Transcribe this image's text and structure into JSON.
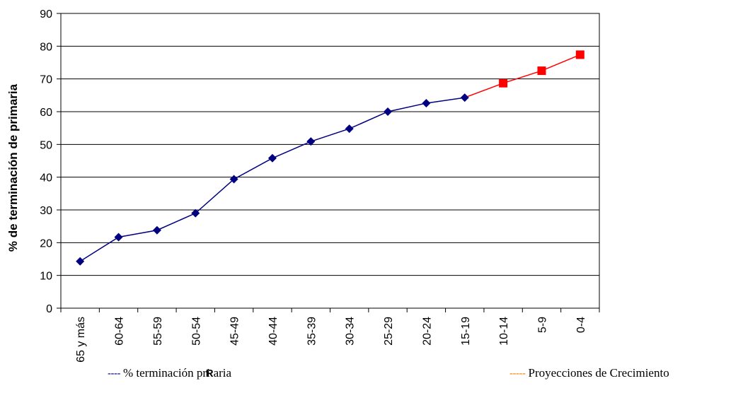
{
  "chart_data": {
    "type": "line",
    "ylabel": "% de terminación de primaria",
    "xlabel": "",
    "ylim": [
      0,
      90
    ],
    "yticks": [
      0,
      10,
      20,
      30,
      40,
      50,
      60,
      70,
      80,
      90
    ],
    "grid": true,
    "categories": [
      "65 y más",
      "60-64",
      "55-59",
      "50-54",
      "45-49",
      "40-44",
      "35-39",
      "30-34",
      "25-29",
      "20-24",
      "15-19",
      "10-14",
      "5-9",
      "0-4"
    ],
    "series": [
      {
        "name": "% terminación primaria",
        "color": "#000080",
        "marker": "diamond",
        "values": [
          14.3,
          21.7,
          23.8,
          29.0,
          39.4,
          45.8,
          50.9,
          54.8,
          60.0,
          62.6,
          64.3,
          null,
          null,
          null
        ]
      },
      {
        "name": "Proyecciones de Crecimiento",
        "color": "#ff0000",
        "marker": "square",
        "values": [
          null,
          null,
          null,
          null,
          null,
          null,
          null,
          null,
          null,
          null,
          64.3,
          68.7,
          72.5,
          77.4
        ]
      }
    ],
    "legend": {
      "position": "bottom",
      "items": [
        {
          "dash": "----",
          "label": "% terminación pri",
          "overlay": "R",
          "label_end": "aria",
          "color": "#000080"
        },
        {
          "dash": "-----",
          "label": "Proyecciones de Crecimiento",
          "color": "#ff7f00"
        }
      ]
    }
  }
}
